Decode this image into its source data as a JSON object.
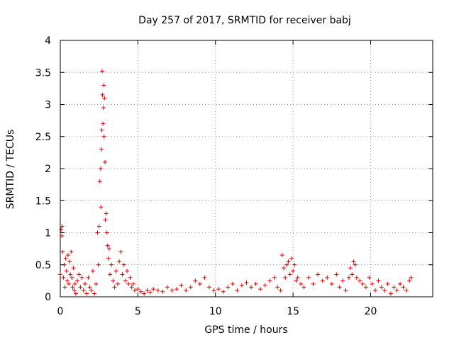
{
  "chart_data": {
    "type": "scatter",
    "title": "Day 257 of 2017, SRMTID for receiver babj",
    "xlabel": "GPS time / hours",
    "ylabel": "SRMTID / TECUs",
    "xlim": [
      0,
      24
    ],
    "ylim": [
      0,
      4
    ],
    "x_ticks": [
      0,
      5,
      10,
      15,
      20
    ],
    "x_tick_labels": [
      "0",
      "5",
      "10",
      "15",
      "20"
    ],
    "y_ticks": [
      0,
      0.5,
      1,
      1.5,
      2,
      2.5,
      3,
      3.5,
      4
    ],
    "y_tick_labels": [
      "0",
      "0.5",
      "1",
      "1.5",
      "2",
      "2.5",
      "3",
      "3.5",
      "4"
    ],
    "grid": true,
    "marker": "plus",
    "color": "#e00000",
    "series": [
      {
        "name": "SRMTID",
        "x": [
          0.0,
          0.05,
          0.1,
          0.12,
          0.15,
          0.2,
          0.25,
          0.3,
          0.35,
          0.4,
          0.45,
          0.5,
          0.55,
          0.6,
          0.65,
          0.7,
          0.75,
          0.8,
          0.85,
          0.9,
          0.95,
          1.0,
          1.1,
          1.2,
          1.3,
          1.4,
          1.5,
          1.6,
          1.7,
          1.8,
          1.9,
          2.0,
          2.1,
          2.2,
          2.3,
          2.4,
          2.45,
          2.5,
          2.55,
          2.6,
          2.62,
          2.65,
          2.68,
          2.7,
          2.72,
          2.75,
          2.78,
          2.8,
          2.82,
          2.85,
          2.88,
          2.9,
          2.95,
          3.0,
          3.05,
          3.1,
          3.15,
          3.2,
          3.3,
          3.4,
          3.5,
          3.6,
          3.7,
          3.8,
          3.9,
          4.0,
          4.1,
          4.2,
          4.3,
          4.4,
          4.5,
          4.6,
          4.7,
          4.8,
          5.0,
          5.2,
          5.4,
          5.6,
          5.8,
          6.0,
          6.3,
          6.6,
          6.9,
          7.2,
          7.5,
          7.8,
          8.1,
          8.4,
          8.7,
          9.0,
          9.3,
          9.6,
          9.9,
          10.2,
          10.5,
          10.8,
          11.1,
          11.4,
          11.7,
          12.0,
          12.3,
          12.6,
          12.9,
          13.2,
          13.5,
          13.8,
          14.0,
          14.2,
          14.3,
          14.4,
          14.5,
          14.6,
          14.7,
          14.8,
          14.9,
          15.0,
          15.1,
          15.2,
          15.3,
          15.5,
          15.7,
          16.0,
          16.3,
          16.6,
          16.9,
          17.2,
          17.5,
          17.8,
          18.0,
          18.2,
          18.4,
          18.6,
          18.7,
          18.8,
          18.9,
          19.0,
          19.1,
          19.3,
          19.5,
          19.7,
          19.9,
          20.1,
          20.3,
          20.5,
          20.7,
          20.9,
          21.1,
          21.3,
          21.5,
          21.7,
          21.9,
          22.1,
          22.3,
          22.5,
          22.6
        ],
        "y": [
          0.35,
          1.05,
          0.95,
          1.1,
          0.7,
          0.3,
          0.5,
          0.15,
          0.6,
          0.4,
          0.25,
          0.65,
          0.2,
          0.55,
          0.35,
          0.7,
          0.3,
          0.15,
          0.45,
          0.1,
          0.2,
          0.05,
          0.25,
          0.35,
          0.15,
          0.3,
          0.1,
          0.2,
          0.05,
          0.3,
          0.15,
          0.1,
          0.4,
          0.05,
          0.2,
          1.0,
          0.5,
          1.1,
          1.8,
          2.0,
          1.4,
          2.3,
          2.6,
          3.52,
          3.15,
          2.7,
          2.95,
          3.3,
          2.5,
          3.1,
          2.1,
          1.2,
          1.3,
          1.0,
          0.8,
          0.6,
          0.75,
          0.35,
          0.5,
          0.25,
          0.15,
          0.4,
          0.2,
          0.55,
          0.7,
          0.35,
          0.5,
          0.25,
          0.4,
          0.2,
          0.3,
          0.15,
          0.2,
          0.1,
          0.12,
          0.08,
          0.05,
          0.1,
          0.07,
          0.12,
          0.1,
          0.08,
          0.15,
          0.1,
          0.12,
          0.18,
          0.1,
          0.15,
          0.25,
          0.2,
          0.3,
          0.15,
          0.1,
          0.12,
          0.08,
          0.15,
          0.2,
          0.1,
          0.18,
          0.22,
          0.15,
          0.2,
          0.12,
          0.18,
          0.25,
          0.3,
          0.15,
          0.1,
          0.65,
          0.45,
          0.3,
          0.5,
          0.55,
          0.35,
          0.6,
          0.4,
          0.5,
          0.25,
          0.3,
          0.2,
          0.15,
          0.3,
          0.2,
          0.35,
          0.25,
          0.3,
          0.2,
          0.35,
          0.15,
          0.25,
          0.1,
          0.3,
          0.45,
          0.35,
          0.55,
          0.5,
          0.3,
          0.25,
          0.2,
          0.15,
          0.3,
          0.2,
          0.1,
          0.25,
          0.15,
          0.1,
          0.2,
          0.05,
          0.15,
          0.1,
          0.2,
          0.15,
          0.1,
          0.25,
          0.3
        ]
      }
    ]
  }
}
